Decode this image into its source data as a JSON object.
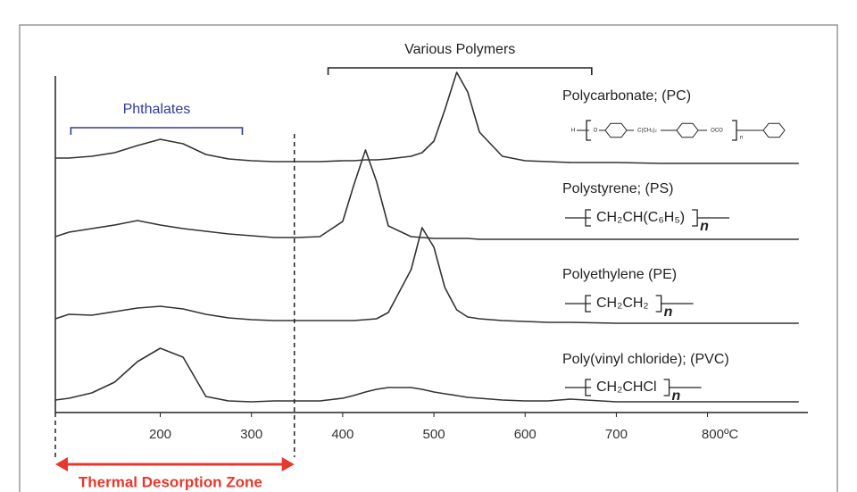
{
  "chart_data": {
    "type": "line",
    "x": [
      85,
      100,
      125,
      150,
      175,
      200,
      225,
      250,
      275,
      300,
      325,
      350,
      375,
      400,
      412,
      425,
      437,
      450,
      475,
      487,
      500,
      512,
      525,
      537,
      550,
      575,
      600,
      625,
      650,
      700,
      750,
      800,
      850,
      900
    ],
    "xlim": [
      85,
      910
    ],
    "xticks": [
      200,
      300,
      400,
      500,
      600,
      700,
      {
        "value": 800,
        "label": "800ºC"
      }
    ],
    "series": [
      {
        "name": "Polycarbonate; (PC)",
        "color": "#333333",
        "formula": [
          "H",
          "O",
          "C(CH₃)₂",
          "OCO",
          "n"
        ],
        "values": [
          6,
          6,
          8,
          12,
          20,
          27,
          22,
          10,
          5,
          3,
          2,
          2,
          2,
          3,
          3,
          4,
          4,
          5,
          8,
          12,
          25,
          60,
          102,
          80,
          35,
          8,
          3,
          2,
          1,
          1,
          0,
          0,
          0,
          0
        ]
      },
      {
        "name": "Polystyrene; (PS)",
        "color": "#333333",
        "formula": [
          "CH₂CH(C₆H₅)",
          "n"
        ],
        "values": [
          3,
          8,
          12,
          16,
          21,
          16,
          12,
          9,
          6,
          4,
          2,
          2,
          3,
          20,
          60,
          100,
          65,
          15,
          3,
          2,
          1,
          1,
          1,
          1,
          0,
          0,
          0,
          0,
          0,
          0,
          0,
          0,
          0,
          0
        ]
      },
      {
        "name": "Polyethylene (PE)",
        "color": "#333333",
        "formula": [
          "CH₂CH₂",
          "n"
        ],
        "values": [
          5,
          10,
          9,
          13,
          17,
          19,
          16,
          10,
          6,
          4,
          3,
          3,
          3,
          3,
          3,
          4,
          5,
          12,
          60,
          107,
          85,
          40,
          15,
          7,
          5,
          3,
          2,
          1,
          1,
          0,
          0,
          0,
          0,
          0
        ]
      },
      {
        "name": "Poly(vinyl chloride); (PVC)",
        "color": "#333333",
        "formula": [
          "CH₂CHCl",
          "n"
        ],
        "values": [
          2,
          4,
          10,
          22,
          45,
          60,
          50,
          6,
          1,
          0,
          1,
          1,
          1,
          4,
          7,
          11,
          14,
          16,
          16,
          14,
          11,
          9,
          7,
          5,
          4,
          2,
          1,
          1,
          3,
          0,
          0,
          0,
          0,
          0
        ]
      }
    ],
    "brackets": [
      {
        "label": "Various Polymers",
        "range": [
          384,
          673
        ],
        "color": "#222222"
      },
      {
        "label": "Phthalates",
        "range": [
          102,
          290
        ],
        "color": "#2e3a9e"
      }
    ],
    "thermal_zone": {
      "label": "Thermal Desorption Zone",
      "range": [
        85,
        347
      ],
      "color": "#e8372c"
    }
  }
}
